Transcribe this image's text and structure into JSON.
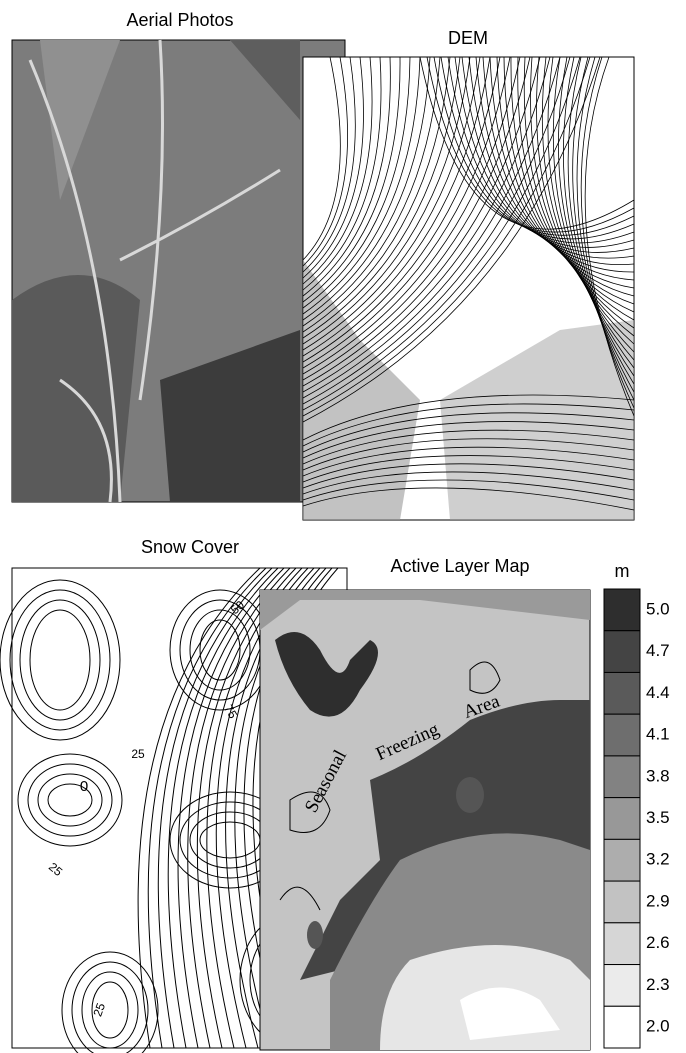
{
  "panels": {
    "aerial": {
      "title": "Aerial Photos"
    },
    "dem": {
      "title": "DEM"
    },
    "snow": {
      "title": "Snow Cover",
      "contour_labels": [
        "50",
        "75",
        "25",
        "0",
        "25",
        "25"
      ]
    },
    "active": {
      "title": "Active Layer Map",
      "annotation": [
        "Seasonal",
        "Freezing",
        "Area"
      ]
    }
  },
  "colorbar": {
    "unit": "m",
    "ticks": [
      {
        "value": 5.0,
        "label": "5.0"
      },
      {
        "value": 4.7,
        "label": "4.7"
      },
      {
        "value": 4.4,
        "label": "4.4"
      },
      {
        "value": 4.1,
        "label": "4.1"
      },
      {
        "value": 3.8,
        "label": "3.8"
      },
      {
        "value": 3.5,
        "label": "3.5"
      },
      {
        "value": 3.2,
        "label": "3.2"
      },
      {
        "value": 2.9,
        "label": "2.9"
      },
      {
        "value": 2.6,
        "label": "2.6"
      },
      {
        "value": 2.3,
        "label": "2.3"
      },
      {
        "value": 2.0,
        "label": "2.0"
      }
    ],
    "colors": [
      "#2e2e2e",
      "#444444",
      "#5a5a5a",
      "#6e6e6e",
      "#828282",
      "#989898",
      "#adadad",
      "#c2c2c2",
      "#d6d6d6",
      "#ebebeb",
      "#ffffff"
    ]
  }
}
